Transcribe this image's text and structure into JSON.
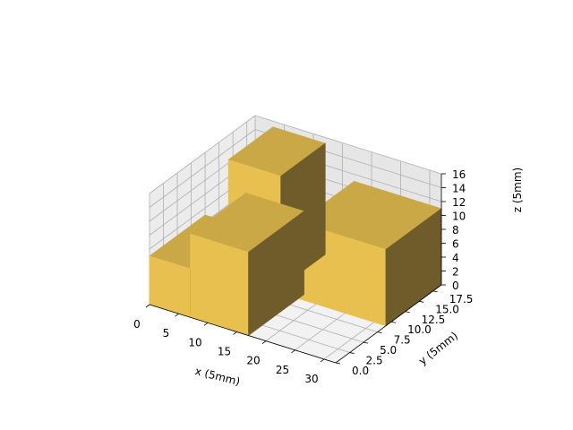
{
  "chart_data": {
    "type": "voxels-3d",
    "title": "",
    "xlabel": "x (5mm)",
    "ylabel": "y (5mm)",
    "zlabel": "z (5mm)",
    "xlim": [
      0,
      32
    ],
    "ylim": [
      0,
      19
    ],
    "zlim": [
      0,
      16
    ],
    "xticks": [
      "0",
      "5",
      "10",
      "15",
      "20",
      "25",
      "30"
    ],
    "xtick_values": [
      0,
      5,
      10,
      15,
      20,
      25,
      30
    ],
    "yticks": [
      "0.0",
      "2.5",
      "5.0",
      "7.5",
      "10.0",
      "12.5",
      "15.0",
      "17.5"
    ],
    "ytick_values": [
      0,
      2.5,
      5,
      7.5,
      10,
      12.5,
      15,
      17.5
    ],
    "zticks": [
      "0",
      "2",
      "4",
      "6",
      "8",
      "10",
      "12",
      "14",
      "16"
    ],
    "ztick_values": [
      0,
      2,
      4,
      6,
      8,
      10,
      12,
      14,
      16
    ],
    "face_color": "#e8c050",
    "top_color": "#c9a845",
    "side_color": "#6f5c2a",
    "blocks": [
      {
        "name": "rear-right-block",
        "x": [
          17,
          32
        ],
        "y": [
          9,
          19
        ],
        "z": [
          0,
          11
        ]
      },
      {
        "name": "tall-rear-left-block",
        "x": [
          4,
          13
        ],
        "y": [
          10,
          18
        ],
        "z": [
          0,
          16
        ]
      },
      {
        "name": "front-low-block",
        "x": [
          0,
          7
        ],
        "y": [
          0,
          10
        ],
        "z": [
          0,
          7
        ]
      },
      {
        "name": "front-main-block",
        "x": [
          7,
          17
        ],
        "y": [
          0,
          10
        ],
        "z": [
          0,
          12
        ]
      }
    ]
  }
}
